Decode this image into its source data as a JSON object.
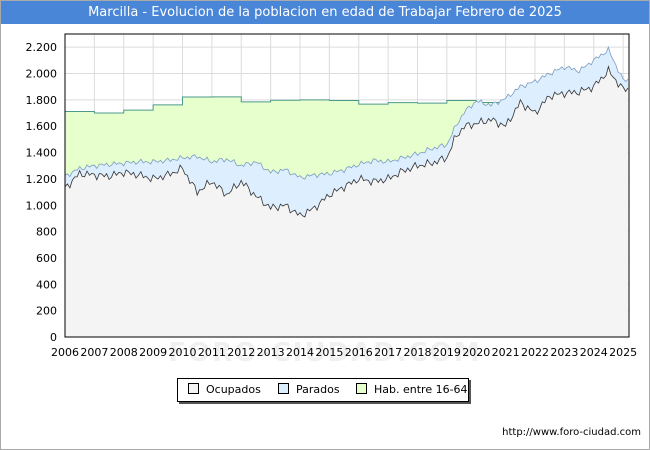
{
  "title": "Marcilla - Evolucion de la poblacion en edad de Trabajar Febrero de 2025",
  "watermark": "FORO-CIUDAD.COM",
  "source_url": "http://www.foro-ciudad.com",
  "colors": {
    "title_bg": "#4a86d8",
    "ocupados_fill": "#f4f4f4",
    "parados_fill": "#ddeeff",
    "hab_fill": "#e6ffcc",
    "hab_line": "#4c9a8c",
    "grid": "#dcdcdc"
  },
  "chart_data": {
    "type": "area",
    "title": "Marcilla - Evolucion de la poblacion en edad de Trabajar Febrero de 2025",
    "xlabel": "",
    "ylabel": "",
    "ylim": [
      0,
      2300
    ],
    "xlim": [
      2006,
      2025.2
    ],
    "grid": true,
    "legend_position": "bottom-center",
    "y_ticks": [
      0,
      200,
      400,
      600,
      800,
      1000,
      1200,
      1400,
      1600,
      1800,
      2000,
      2200
    ],
    "y_tick_labels": [
      "0",
      "200",
      "400",
      "600",
      "800",
      "1.000",
      "1.200",
      "1.400",
      "1.600",
      "1.800",
      "2.000",
      "2.200"
    ],
    "x_ticks": [
      "2006",
      "2007",
      "2008",
      "2009",
      "2010",
      "2011",
      "2012",
      "2013",
      "2014",
      "2015",
      "2016",
      "2017",
      "2018",
      "2019",
      "2020",
      "2021",
      "2022",
      "2023",
      "2024",
      "2025"
    ],
    "series": [
      {
        "name": "Hab. entre 16-64",
        "x": [
          2006,
          2007,
          2008,
          2009,
          2010,
          2011,
          2012,
          2013,
          2014,
          2015,
          2016,
          2017,
          2018,
          2019,
          2020,
          2021
        ],
        "values": [
          1712,
          1700,
          1722,
          1762,
          1822,
          1823,
          1785,
          1797,
          1800,
          1795,
          1768,
          1779,
          1775,
          1795,
          1780,
          1790
        ]
      },
      {
        "name": "Parados",
        "x": [
          2006,
          2006.5,
          2007,
          2007.5,
          2008,
          2008.5,
          2009,
          2009.5,
          2010,
          2010.5,
          2011,
          2011.5,
          2012,
          2012.5,
          2013,
          2013.5,
          2014,
          2014.5,
          2015,
          2015.5,
          2016,
          2016.5,
          2017,
          2017.5,
          2018,
          2018.5,
          2019,
          2019.3,
          2019.6,
          2020,
          2020.5,
          2021,
          2021.5,
          2022,
          2022.5,
          2023,
          2023.5,
          2024,
          2024.5,
          2025
        ],
        "values": [
          1220,
          1280,
          1300,
          1310,
          1320,
          1330,
          1330,
          1340,
          1360,
          1370,
          1330,
          1350,
          1300,
          1330,
          1250,
          1270,
          1210,
          1230,
          1240,
          1270,
          1310,
          1340,
          1330,
          1360,
          1390,
          1430,
          1460,
          1600,
          1710,
          1790,
          1760,
          1810,
          1900,
          1940,
          2000,
          2050,
          2020,
          2100,
          2180,
          1950
        ]
      },
      {
        "name": "Ocupados",
        "x": [
          2006,
          2006.5,
          2007,
          2007.5,
          2008,
          2008.5,
          2009,
          2009.5,
          2010,
          2010.5,
          2011,
          2011.5,
          2012,
          2012.5,
          2013,
          2013.5,
          2014,
          2014.5,
          2015,
          2015.5,
          2016,
          2016.5,
          2017,
          2017.5,
          2018,
          2018.5,
          2019,
          2019.3,
          2019.6,
          2020,
          2020.5,
          2021,
          2021.5,
          2022,
          2022.5,
          2023,
          2023.5,
          2024,
          2024.5,
          2025
        ],
        "values": [
          1130,
          1240,
          1230,
          1220,
          1250,
          1230,
          1200,
          1230,
          1280,
          1100,
          1180,
          1080,
          1180,
          1070,
          980,
          1000,
          920,
          980,
          1080,
          1140,
          1200,
          1180,
          1200,
          1260,
          1300,
          1320,
          1360,
          1520,
          1600,
          1620,
          1650,
          1600,
          1780,
          1700,
          1830,
          1850,
          1860,
          1900,
          2020,
          1880
        ]
      }
    ]
  },
  "legend": {
    "items": [
      {
        "label": "Ocupados",
        "color": "#f4f4f4"
      },
      {
        "label": "Parados",
        "color": "#ddeeff"
      },
      {
        "label": "Hab. entre 16-64",
        "color": "#e6ffcc"
      }
    ]
  }
}
